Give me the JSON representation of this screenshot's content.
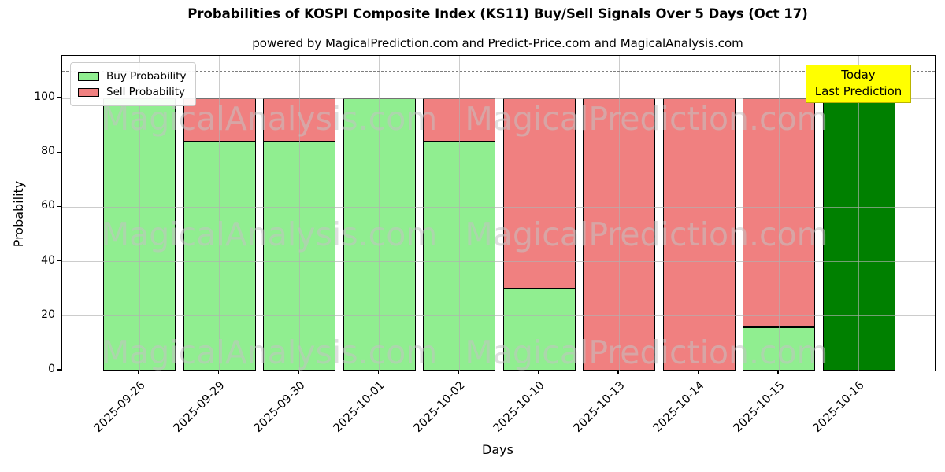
{
  "chart_data": {
    "type": "bar",
    "stacked": true,
    "title": "Probabilities of KOSPI Composite Index (KS11) Buy/Sell Signals Over 5 Days (Oct 17)",
    "subtitle": "powered by MagicalPrediction.com and Predict-Price.com and MagicalAnalysis.com",
    "xlabel": "Days",
    "ylabel": "Probability",
    "ylim": [
      0,
      115
    ],
    "yticks": [
      0,
      20,
      40,
      60,
      80,
      100
    ],
    "grid": true,
    "dashed_line_y": 110,
    "categories": [
      "2025-09-26",
      "2025-09-29",
      "2025-09-30",
      "2025-10-01",
      "2025-10-02",
      "2025-10-10",
      "2025-10-13",
      "2025-10-14",
      "2025-10-15",
      "2025-10-16"
    ],
    "series": [
      {
        "name": "Buy Probability",
        "color": "#90EE90",
        "values": [
          100,
          84,
          84,
          100,
          84,
          30,
          0,
          0,
          16,
          0
        ]
      },
      {
        "name": "Sell Probability",
        "color": "#F08080",
        "values": [
          0,
          16,
          16,
          0,
          16,
          70,
          100,
          100,
          84,
          0
        ]
      },
      {
        "name": "Today Prediction",
        "color": "#008000",
        "values": [
          0,
          0,
          0,
          0,
          0,
          0,
          0,
          0,
          0,
          100
        ]
      }
    ],
    "legend": {
      "position": "upper left",
      "entries": [
        {
          "label": "Buy Probability",
          "color": "#90EE90"
        },
        {
          "label": "Sell Probability",
          "color": "#F08080"
        }
      ]
    },
    "annotation": {
      "line1": "Today",
      "line2": "Last Prediction",
      "bg": "#FFFF00",
      "border": "#B9B400"
    },
    "watermarks": {
      "left": "MagicalAnalysis.com",
      "right": "MagicalPrediction.com"
    },
    "colors": {
      "buy": "#90EE90",
      "sell": "#F08080",
      "today": "#008000",
      "bar_edge": "#000000",
      "grid": "#B0B0B0",
      "dashed_line": "#7F7F7F",
      "watermark": "#C3C3C3"
    }
  }
}
